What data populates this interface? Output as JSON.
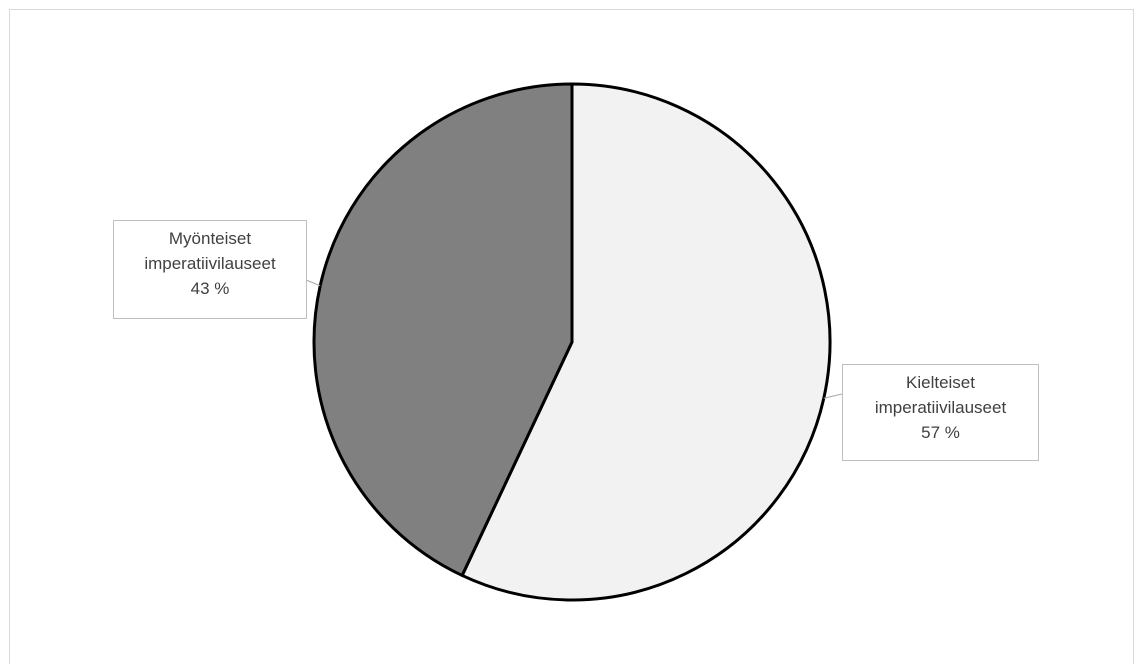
{
  "chart_data": {
    "type": "pie",
    "slices": [
      {
        "label_line1": "Kielteiset",
        "label_line2": "imperatiivilauseet",
        "percent_text": "57 %",
        "value": 57,
        "color": "#f2f2f2"
      },
      {
        "label_line1": "Myönteiset",
        "label_line2": "imperatiivilauseet",
        "percent_text": "43 %",
        "value": 43,
        "color": "#808080"
      }
    ],
    "stroke_color": "#000000",
    "legend": "none"
  }
}
